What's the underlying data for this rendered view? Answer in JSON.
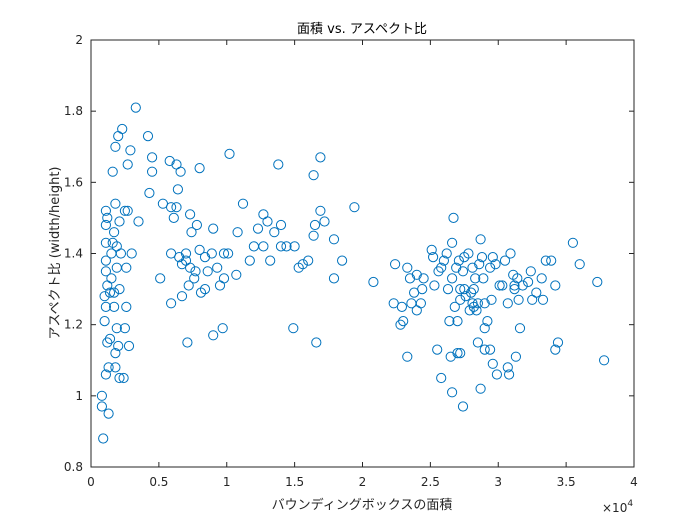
{
  "chart_data": {
    "type": "scatter",
    "title": "面積 vs. アスペクト比",
    "xlabel": "バウンディングボックスの面積",
    "ylabel": "アスペクト比 (width/height)",
    "x_exponent_label": "×10",
    "x_exponent_power": "4",
    "xlim": [
      0,
      40000
    ],
    "ylim": [
      0.8,
      2.0
    ],
    "xticks": [
      0,
      5000,
      10000,
      15000,
      20000,
      25000,
      30000,
      35000,
      40000
    ],
    "xtick_labels": [
      "0",
      "0.5",
      "1",
      "1.5",
      "2",
      "2.5",
      "3",
      "3.5",
      "4"
    ],
    "yticks": [
      0.8,
      1.0,
      1.2,
      1.4,
      1.6,
      1.8,
      2.0
    ],
    "ytick_labels": [
      "0.8",
      "1",
      "1.2",
      "1.4",
      "1.6",
      "1.8",
      "2"
    ],
    "grid": false,
    "marker": "open-circle",
    "color": "#0072BD",
    "points": [
      [
        900,
        0.88
      ],
      [
        800,
        1.0
      ],
      [
        1300,
        0.95
      ],
      [
        800,
        0.97
      ],
      [
        1100,
        1.06
      ],
      [
        1300,
        1.08
      ],
      [
        1800,
        1.08
      ],
      [
        2100,
        1.05
      ],
      [
        2400,
        1.05
      ],
      [
        1800,
        1.12
      ],
      [
        2000,
        1.14
      ],
      [
        1200,
        1.15
      ],
      [
        1400,
        1.16
      ],
      [
        2800,
        1.14
      ],
      [
        1900,
        1.19
      ],
      [
        1000,
        1.21
      ],
      [
        1100,
        1.25
      ],
      [
        1700,
        1.25
      ],
      [
        2500,
        1.19
      ],
      [
        2600,
        1.25
      ],
      [
        1000,
        1.28
      ],
      [
        1400,
        1.29
      ],
      [
        1700,
        1.29
      ],
      [
        2100,
        1.3
      ],
      [
        1200,
        1.31
      ],
      [
        1500,
        1.33
      ],
      [
        1100,
        1.35
      ],
      [
        1900,
        1.36
      ],
      [
        2600,
        1.36
      ],
      [
        1100,
        1.38
      ],
      [
        1500,
        1.4
      ],
      [
        1900,
        1.42
      ],
      [
        1100,
        1.43
      ],
      [
        1600,
        1.43
      ],
      [
        2200,
        1.4
      ],
      [
        3000,
        1.4
      ],
      [
        1100,
        1.48
      ],
      [
        1700,
        1.46
      ],
      [
        2100,
        1.49
      ],
      [
        1200,
        1.5
      ],
      [
        2500,
        1.52
      ],
      [
        2700,
        1.52
      ],
      [
        3500,
        1.49
      ],
      [
        1100,
        1.52
      ],
      [
        1800,
        1.54
      ],
      [
        1600,
        1.63
      ],
      [
        4300,
        1.57
      ],
      [
        2700,
        1.65
      ],
      [
        1800,
        1.7
      ],
      [
        2900,
        1.69
      ],
      [
        2000,
        1.73
      ],
      [
        2300,
        1.75
      ],
      [
        4200,
        1.73
      ],
      [
        3300,
        1.81
      ],
      [
        4500,
        1.67
      ],
      [
        4500,
        1.63
      ],
      [
        5300,
        1.54
      ],
      [
        5900,
        1.53
      ],
      [
        6100,
        1.5
      ],
      [
        6300,
        1.53
      ],
      [
        6400,
        1.58
      ],
      [
        6600,
        1.63
      ],
      [
        5800,
        1.66
      ],
      [
        6300,
        1.65
      ],
      [
        5100,
        1.33
      ],
      [
        5900,
        1.4
      ],
      [
        6500,
        1.39
      ],
      [
        6700,
        1.37
      ],
      [
        7000,
        1.4
      ],
      [
        7000,
        1.38
      ],
      [
        6700,
        1.28
      ],
      [
        7200,
        1.31
      ],
      [
        7300,
        1.36
      ],
      [
        7600,
        1.33
      ],
      [
        7700,
        1.35
      ],
      [
        8100,
        1.29
      ],
      [
        8400,
        1.3
      ],
      [
        8600,
        1.35
      ],
      [
        7400,
        1.46
      ],
      [
        7300,
        1.51
      ],
      [
        7800,
        1.48
      ],
      [
        8000,
        1.41
      ],
      [
        8400,
        1.39
      ],
      [
        8900,
        1.4
      ],
      [
        9000,
        1.47
      ],
      [
        9300,
        1.36
      ],
      [
        9500,
        1.31
      ],
      [
        9800,
        1.33
      ],
      [
        9800,
        1.4
      ],
      [
        10800,
        1.46
      ],
      [
        10700,
        1.34
      ],
      [
        11200,
        1.54
      ],
      [
        11700,
        1.38
      ],
      [
        12000,
        1.42
      ],
      [
        12300,
        1.47
      ],
      [
        12700,
        1.42
      ],
      [
        12700,
        1.51
      ],
      [
        13000,
        1.49
      ],
      [
        13200,
        1.38
      ],
      [
        13500,
        1.46
      ],
      [
        13800,
        1.65
      ],
      [
        14000,
        1.48
      ],
      [
        14000,
        1.42
      ],
      [
        14400,
        1.42
      ],
      [
        15000,
        1.42
      ],
      [
        15300,
        1.36
      ],
      [
        15600,
        1.37
      ],
      [
        16000,
        1.38
      ],
      [
        16400,
        1.45
      ],
      [
        16500,
        1.48
      ],
      [
        16400,
        1.62
      ],
      [
        16900,
        1.67
      ],
      [
        16900,
        1.52
      ],
      [
        17200,
        1.49
      ],
      [
        17900,
        1.44
      ],
      [
        17900,
        1.33
      ],
      [
        18500,
        1.38
      ],
      [
        19400,
        1.53
      ],
      [
        10200,
        1.68
      ],
      [
        8000,
        1.64
      ],
      [
        10100,
        1.4
      ],
      [
        9700,
        1.19
      ],
      [
        7100,
        1.15
      ],
      [
        9000,
        1.17
      ],
      [
        5900,
        1.26
      ],
      [
        14900,
        1.19
      ],
      [
        16600,
        1.15
      ],
      [
        20800,
        1.32
      ],
      [
        22300,
        1.26
      ],
      [
        22400,
        1.37
      ],
      [
        22900,
        1.25
      ],
      [
        23000,
        1.21
      ],
      [
        23300,
        1.36
      ],
      [
        23500,
        1.33
      ],
      [
        23600,
        1.26
      ],
      [
        24000,
        1.34
      ],
      [
        23800,
        1.29
      ],
      [
        24300,
        1.26
      ],
      [
        24500,
        1.33
      ],
      [
        25200,
        1.39
      ],
      [
        25300,
        1.31
      ],
      [
        25600,
        1.35
      ],
      [
        25800,
        1.36
      ],
      [
        26000,
        1.38
      ],
      [
        26200,
        1.4
      ],
      [
        26300,
        1.3
      ],
      [
        26400,
        1.21
      ],
      [
        26600,
        1.33
      ],
      [
        26600,
        1.43
      ],
      [
        26700,
        1.5
      ],
      [
        26800,
        1.25
      ],
      [
        26900,
        1.36
      ],
      [
        27000,
        1.21
      ],
      [
        27100,
        1.38
      ],
      [
        27200,
        1.3
      ],
      [
        27400,
        1.35
      ],
      [
        27500,
        1.39
      ],
      [
        27600,
        1.28
      ],
      [
        27800,
        1.4
      ],
      [
        27900,
        1.24
      ],
      [
        28000,
        1.29
      ],
      [
        28100,
        1.36
      ],
      [
        28200,
        1.3
      ],
      [
        28300,
        1.33
      ],
      [
        28500,
        1.26
      ],
      [
        28600,
        1.37
      ],
      [
        28700,
        1.44
      ],
      [
        28800,
        1.39
      ],
      [
        28900,
        1.33
      ],
      [
        29000,
        1.26
      ],
      [
        29200,
        1.21
      ],
      [
        29400,
        1.36
      ],
      [
        29500,
        1.27
      ],
      [
        29600,
        1.39
      ],
      [
        29800,
        1.37
      ],
      [
        30100,
        1.31
      ],
      [
        30300,
        1.31
      ],
      [
        30500,
        1.38
      ],
      [
        30700,
        1.26
      ],
      [
        30900,
        1.4
      ],
      [
        31100,
        1.34
      ],
      [
        31200,
        1.3
      ],
      [
        31400,
        1.33
      ],
      [
        31500,
        1.27
      ],
      [
        31600,
        1.19
      ],
      [
        31800,
        1.31
      ],
      [
        32200,
        1.32
      ],
      [
        32400,
        1.35
      ],
      [
        32500,
        1.27
      ],
      [
        32800,
        1.29
      ],
      [
        33200,
        1.33
      ],
      [
        33300,
        1.27
      ],
      [
        33500,
        1.38
      ],
      [
        33900,
        1.38
      ],
      [
        34200,
        1.31
      ],
      [
        34200,
        1.13
      ],
      [
        34400,
        1.15
      ],
      [
        35500,
        1.43
      ],
      [
        36000,
        1.37
      ],
      [
        37300,
        1.32
      ],
      [
        37800,
        1.1
      ],
      [
        22800,
        1.2
      ],
      [
        23300,
        1.11
      ],
      [
        24000,
        1.24
      ],
      [
        25500,
        1.13
      ],
      [
        25800,
        1.05
      ],
      [
        26500,
        1.11
      ],
      [
        27200,
        1.12
      ],
      [
        27400,
        0.97
      ],
      [
        27000,
        1.12
      ],
      [
        26600,
        1.01
      ],
      [
        28500,
        1.15
      ],
      [
        28700,
        1.02
      ],
      [
        29000,
        1.19
      ],
      [
        29400,
        1.13
      ],
      [
        29600,
        1.09
      ],
      [
        29900,
        1.06
      ],
      [
        30700,
        1.08
      ],
      [
        31300,
        1.11
      ],
      [
        30800,
        1.06
      ],
      [
        27200,
        1.27
      ],
      [
        27500,
        1.3
      ],
      [
        28200,
        1.25
      ],
      [
        28400,
        1.24
      ],
      [
        25100,
        1.41
      ],
      [
        24400,
        1.3
      ],
      [
        29000,
        1.13
      ],
      [
        31200,
        1.31
      ],
      [
        28100,
        1.26
      ]
    ]
  }
}
